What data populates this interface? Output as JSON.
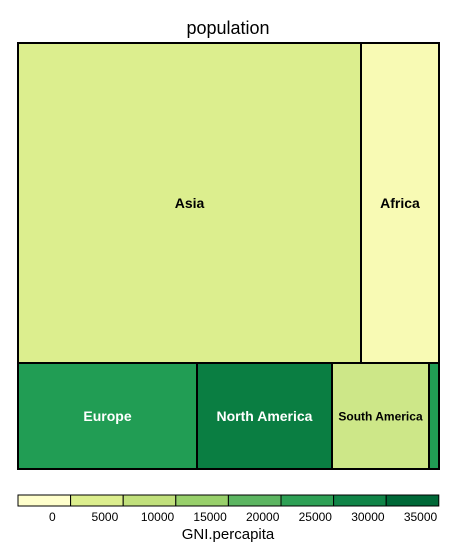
{
  "chart_data": {
    "type": "treemap",
    "title": "population",
    "size_variable": "population",
    "color_variable": "GNI.percapita",
    "tiles": [
      {
        "label": "Asia",
        "color": "#dcee8e",
        "text_color": "#000000"
      },
      {
        "label": "Africa",
        "color": "#f8fab4",
        "text_color": "#000000"
      },
      {
        "label": "Europe",
        "color": "#219d54",
        "text_color": "#ffffff"
      },
      {
        "label": "North America",
        "color": "#0a7e42",
        "text_color": "#ffffff"
      },
      {
        "label": "South America",
        "color": "#cde788",
        "text_color": "#000000"
      },
      {
        "label": "",
        "color": "#219d54",
        "text_color": "#000000"
      }
    ],
    "legend": {
      "title": "GNI.percapita",
      "ticks": [
        "0",
        "5000",
        "10000",
        "15000",
        "20000",
        "25000",
        "30000",
        "35000"
      ],
      "colors": [
        "#ffffcc",
        "#dcee8e",
        "#c1e07c",
        "#98d06b",
        "#5cb561",
        "#2ea055",
        "#108447",
        "#006837"
      ]
    }
  }
}
